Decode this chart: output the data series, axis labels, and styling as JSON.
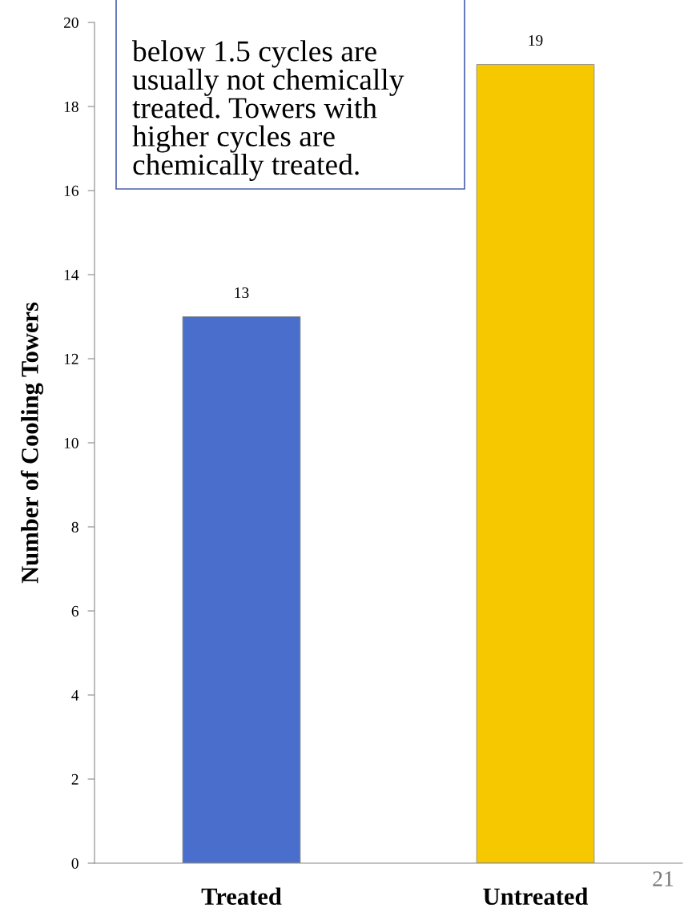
{
  "chart_data": {
    "type": "bar",
    "ylabel": "Number of Cooling Towers",
    "categories": [
      "Treated",
      "Untreated"
    ],
    "values": [
      13,
      19
    ],
    "colors": [
      "#4a6ecb",
      "#f5c800"
    ],
    "ylim": [
      0,
      20
    ],
    "yticks": [
      0,
      2,
      4,
      6,
      8,
      10,
      12,
      14,
      16,
      18,
      20
    ],
    "grid": false,
    "data_labels": true,
    "annotations": [
      "below 1.5 cycles are usually not chemically treated. Towers with higher cycles are chemically treated.",
      "21"
    ]
  }
}
